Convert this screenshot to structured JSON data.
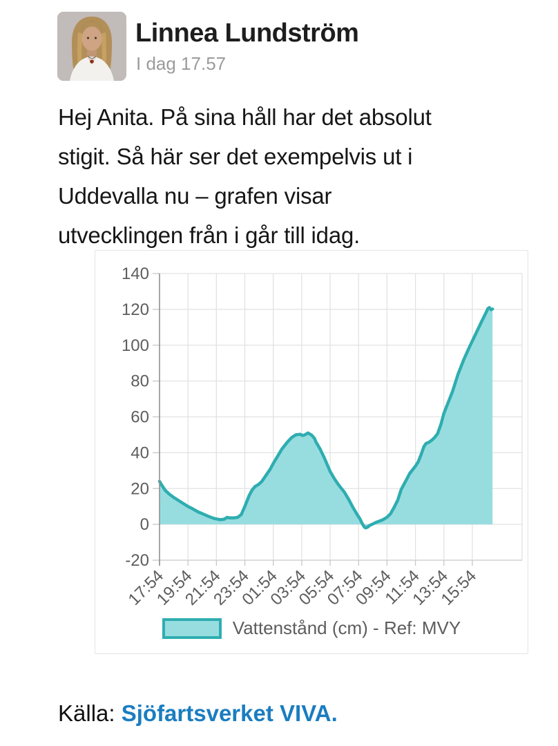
{
  "post": {
    "author": "Linnea Lundström",
    "timestamp": "I dag 17.57",
    "body": "Hej Anita. På sina håll har det absolut stigit. Så här ser det exempelvis ut i\nUddevalla nu – grafen visar\nutvecklingen från i går till idag.",
    "body_lines": "Hej Anita. På sina håll har det absolut\nstigit. Så här ser det exempelvis ut i\nUddevalla nu – grafen visar\nutvecklingen från i går till idag.",
    "source_label": "Källa:",
    "source_link": "Sjöfartsverket VIVA."
  },
  "chart_data": {
    "type": "area",
    "legend": "Vattenstånd (cm) - Ref: MVY",
    "ylabel": "",
    "xlabel": "",
    "ylim": [
      -20,
      140
    ],
    "x_span_hours": 25.5,
    "grid": true,
    "legend_position": "bottom",
    "y_ticks": [
      140,
      120,
      100,
      80,
      60,
      40,
      20,
      0,
      -20
    ],
    "x_tick_labels": [
      "17:54",
      "19:54",
      "21:54",
      "23:54",
      "01:54",
      "03:54",
      "05:54",
      "07:54",
      "09:54",
      "11:54",
      "13:54",
      "15:54"
    ],
    "x_tick_hours": [
      0,
      2,
      4,
      6,
      8,
      10,
      12,
      14,
      16,
      18,
      20,
      22
    ],
    "series": [
      {
        "name": "Vattenstånd (cm) - Ref: MVY",
        "points": [
          [
            0,
            24
          ],
          [
            0.15,
            22
          ],
          [
            0.4,
            19
          ],
          [
            0.7,
            16.8
          ],
          [
            1,
            15
          ],
          [
            1.4,
            13
          ],
          [
            1.8,
            11
          ],
          [
            2,
            10
          ],
          [
            2.3,
            8.8
          ],
          [
            2.7,
            7
          ],
          [
            3,
            6
          ],
          [
            3.4,
            4.6
          ],
          [
            3.8,
            3.4
          ],
          [
            4,
            3
          ],
          [
            4.3,
            2.6
          ],
          [
            4.55,
            2.9
          ],
          [
            4.75,
            3.9
          ],
          [
            4.95,
            3.6
          ],
          [
            5.2,
            3.6
          ],
          [
            5.5,
            3.9
          ],
          [
            5.75,
            5.5
          ],
          [
            6,
            10
          ],
          [
            6.15,
            13
          ],
          [
            6.3,
            16
          ],
          [
            6.5,
            19
          ],
          [
            6.7,
            21
          ],
          [
            7,
            22.5
          ],
          [
            7.2,
            24
          ],
          [
            7.5,
            27.5
          ],
          [
            7.8,
            31
          ],
          [
            8,
            34
          ],
          [
            8.3,
            38
          ],
          [
            8.6,
            42
          ],
          [
            9,
            46
          ],
          [
            9.3,
            48.5
          ],
          [
            9.6,
            50
          ],
          [
            9.9,
            50.3
          ],
          [
            10.05,
            49.6
          ],
          [
            10.2,
            49.9
          ],
          [
            10.45,
            51
          ],
          [
            10.7,
            49.8
          ],
          [
            10.9,
            48
          ],
          [
            11,
            46
          ],
          [
            11.3,
            42
          ],
          [
            11.6,
            37
          ],
          [
            12,
            29.5
          ],
          [
            12.3,
            25.5
          ],
          [
            12.6,
            22
          ],
          [
            13,
            18
          ],
          [
            13.3,
            14
          ],
          [
            13.6,
            9.5
          ],
          [
            13.9,
            5.5
          ],
          [
            14.1,
            3
          ],
          [
            14.25,
            0.5
          ],
          [
            14.4,
            -1.5
          ],
          [
            14.5,
            -2
          ],
          [
            14.65,
            -1.5
          ],
          [
            14.8,
            -0.5
          ],
          [
            15,
            0.2
          ],
          [
            15.2,
            1
          ],
          [
            15.45,
            1.8
          ],
          [
            15.7,
            2.5
          ],
          [
            16,
            4
          ],
          [
            16.25,
            6
          ],
          [
            16.5,
            9.5
          ],
          [
            16.75,
            13.5
          ],
          [
            17,
            19.5
          ],
          [
            17.3,
            24
          ],
          [
            17.6,
            28.5
          ],
          [
            18,
            32.5
          ],
          [
            18.2,
            35
          ],
          [
            18.4,
            39
          ],
          [
            18.6,
            43.5
          ],
          [
            18.75,
            45.2
          ],
          [
            18.95,
            45.8
          ],
          [
            19.15,
            47
          ],
          [
            19.35,
            48.5
          ],
          [
            19.55,
            50.5
          ],
          [
            19.8,
            56
          ],
          [
            20,
            62
          ],
          [
            20.3,
            68
          ],
          [
            20.6,
            74
          ],
          [
            21,
            84
          ],
          [
            21.4,
            92
          ],
          [
            21.8,
            99
          ],
          [
            22.1,
            104
          ],
          [
            22.4,
            109
          ],
          [
            22.7,
            114
          ],
          [
            22.95,
            118
          ],
          [
            23.1,
            120.5
          ],
          [
            23.2,
            121
          ],
          [
            23.32,
            119.8
          ],
          [
            23.42,
            120.2
          ]
        ]
      }
    ],
    "colors": {
      "fill": "#97dde0",
      "stroke": "#2fadb0",
      "grid": "#e2e2e2",
      "axis_y": "#8f8f8f",
      "axis_x": "#c6c6c6",
      "tick_text": "#5d5d5d",
      "link": "#1a7dc0"
    }
  }
}
